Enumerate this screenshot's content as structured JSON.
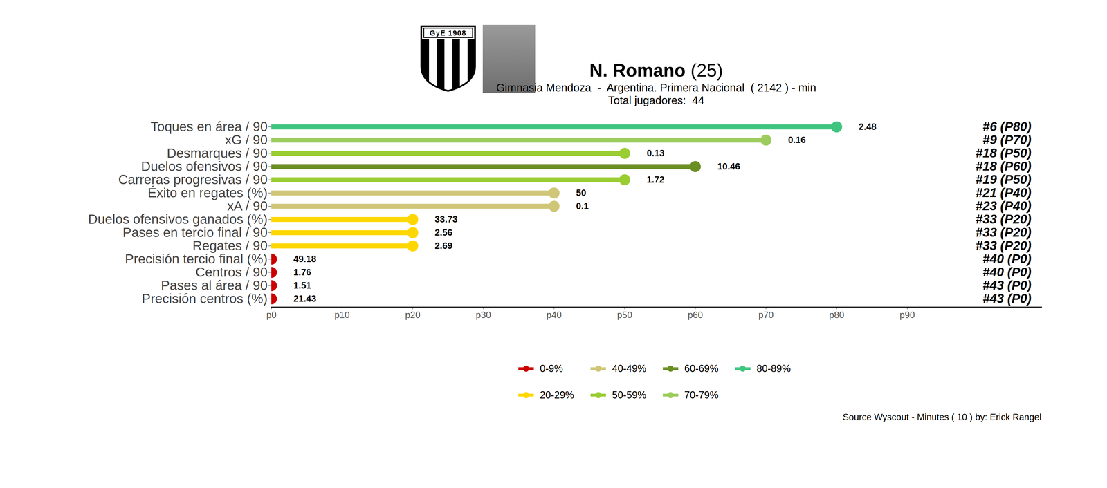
{
  "chart_data": {
    "type": "bar",
    "orientation": "horizontal",
    "title": "N. Romano (25)",
    "subtitle": [
      "Gimnasia Mendoza  -  Argentina. Primera Nacional  ( 2142 ) - min",
      "Total jugadores:  44"
    ],
    "badge_text": "GyE 1908",
    "caption": "Source Wyscout - Minutes ( 10 ) by: Erick Rangel",
    "categories": [
      "Toques en área / 90",
      "xG / 90",
      "Desmarques / 90",
      "Duelos ofensivos / 90",
      "Carreras progresivas / 90",
      "Éxito en regates (%)",
      "xA / 90",
      "Duelos ofensivos ganados (%)",
      "Pases en tercio final / 90",
      "Regates / 90",
      "Precisión tercio final (%)",
      "Centros / 90",
      "Pases al área / 90",
      "Precisión centros (%)"
    ],
    "values": [
      80,
      70,
      50,
      60,
      50,
      40,
      40,
      20,
      20,
      20,
      0,
      0,
      0,
      0
    ],
    "colors": [
      "#40c580",
      "#9dcc5e",
      "#9acd32",
      "#6b8e23",
      "#9acd32",
      "#cfc678",
      "#cfc678",
      "#ffd700",
      "#ffd700",
      "#ffd700",
      "#cc0000",
      "#cc0000",
      "#cc0000",
      "#cc0000"
    ],
    "metric_values": [
      2.48,
      0.16,
      0.13,
      10.46,
      1.72,
      50,
      0.1,
      33.73,
      2.56,
      2.69,
      49.18,
      1.76,
      1.51,
      21.43
    ],
    "rank_labels": [
      "#6 (P80)",
      "#9 (P70)",
      "#18 (P50)",
      "#18 (P60)",
      "#19 (P50)",
      "#21 (P40)",
      "#23 (P40)",
      "#33 (P20)",
      "#33 (P20)",
      "#33 (P20)",
      "#40 (P0)",
      "#40 (P0)",
      "#43 (P0)",
      "#43 (P0)"
    ],
    "xlim": [
      0,
      109
    ],
    "xticks": [
      {
        "value": 0,
        "label": "p0"
      },
      {
        "value": 10,
        "label": "p10"
      },
      {
        "value": 20,
        "label": "p20"
      },
      {
        "value": 30,
        "label": "p30"
      },
      {
        "value": 40,
        "label": "p40"
      },
      {
        "value": 50,
        "label": "p50"
      },
      {
        "value": 60,
        "label": "p60"
      },
      {
        "value": 70,
        "label": "p70"
      },
      {
        "value": 80,
        "label": "p80"
      },
      {
        "value": 90,
        "label": "p90"
      }
    ],
    "color_legend": [
      {
        "label": "0-9%",
        "color": "#cc0000"
      },
      {
        "label": "20-29%",
        "color": "#ffd700"
      },
      {
        "label": "40-49%",
        "color": "#cfc678"
      },
      {
        "label": "50-59%",
        "color": "#9acd32"
      },
      {
        "label": "60-69%",
        "color": "#6b8e23"
      },
      {
        "label": "70-79%",
        "color": "#9dcc5e"
      },
      {
        "label": "80-89%",
        "color": "#40c580"
      }
    ]
  }
}
